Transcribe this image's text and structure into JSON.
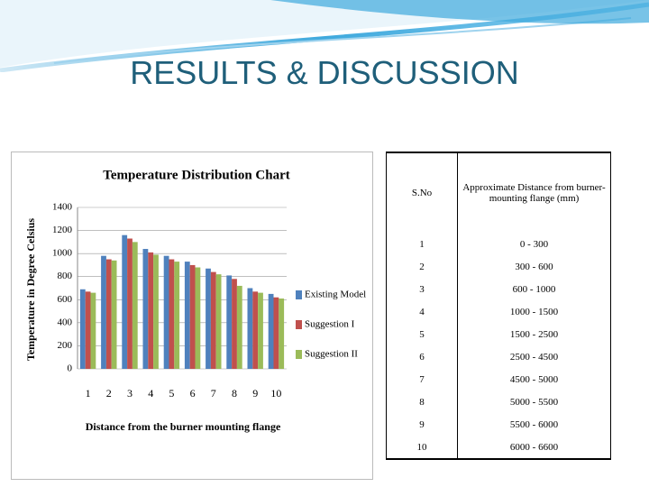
{
  "slide_title": "RESULTS & DISCUSSION",
  "chart_data": {
    "type": "bar",
    "title": "Temperature Distribution Chart",
    "x_label": "Distance from the burner mounting flange",
    "y_label": "Temperature in Degree Celsius",
    "categories": [
      "1",
      "2",
      "3",
      "4",
      "5",
      "6",
      "7",
      "8",
      "9",
      "10"
    ],
    "series": [
      {
        "name": "Existing Model",
        "color": "#4f81bd",
        "values": [
          690,
          980,
          1160,
          1040,
          980,
          930,
          870,
          810,
          700,
          650
        ]
      },
      {
        "name": "Suggestion I",
        "color": "#c0504d",
        "values": [
          670,
          950,
          1130,
          1010,
          950,
          900,
          840,
          780,
          670,
          620
        ]
      },
      {
        "name": "Suggestion II",
        "color": "#9bbb59",
        "values": [
          660,
          940,
          1100,
          990,
          930,
          880,
          820,
          720,
          660,
          610
        ]
      }
    ],
    "ylim": [
      0,
      1400
    ],
    "yticks": [
      0,
      200,
      400,
      600,
      800,
      1000,
      1200,
      1400
    ],
    "grid": true,
    "legend": "right"
  },
  "table": {
    "header": [
      "S.No",
      "Approximate Distance from burner-mounting flange (mm)"
    ],
    "rows": [
      [
        "1",
        "0 - 300"
      ],
      [
        "2",
        "300 - 600"
      ],
      [
        "3",
        "600 - 1000"
      ],
      [
        "4",
        "1000 - 1500"
      ],
      [
        "5",
        "1500 - 2500"
      ],
      [
        "6",
        "2500 - 4500"
      ],
      [
        "7",
        "4500 - 5000"
      ],
      [
        "8",
        "5000 - 5500"
      ],
      [
        "9",
        "5500 - 6000"
      ],
      [
        "10",
        "6000 - 6600"
      ]
    ]
  }
}
